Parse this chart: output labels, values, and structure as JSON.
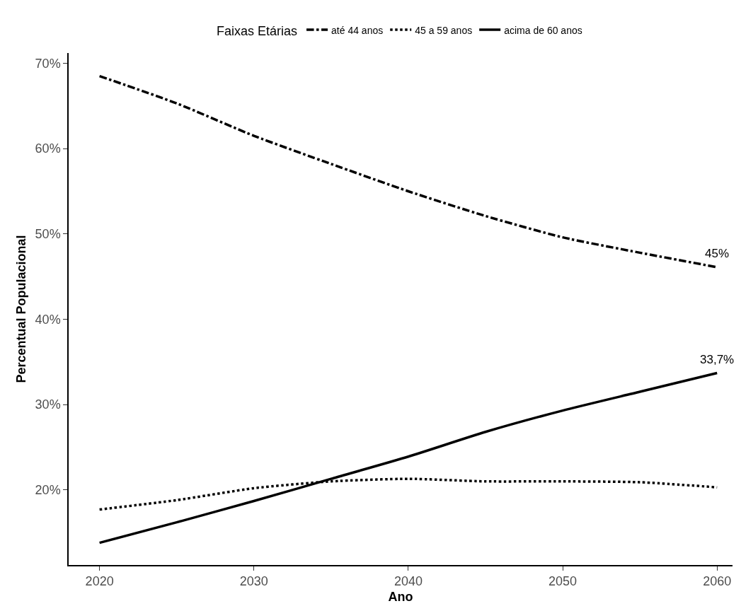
{
  "chart_data": {
    "type": "line",
    "xlabel": "Ano",
    "ylabel": "Percentual Populacional",
    "legend_title": "Faixas Etárias",
    "legend": "top",
    "x": [
      2020,
      2025,
      2030,
      2035,
      2040,
      2045,
      2050,
      2055,
      2060
    ],
    "series": [
      {
        "name": "até 44 anos",
        "color": "#000000",
        "line_style": "dashed",
        "values": [
          68.5,
          65.3,
          61.5,
          58.2,
          55.0,
          52.1,
          49.6,
          47.8,
          46.1
        ]
      },
      {
        "name": "45 a 59 anos",
        "color": "#000000",
        "line_style": "dotted",
        "values": [
          17.7,
          18.8,
          20.2,
          21.0,
          21.3,
          21.0,
          21.0,
          20.9,
          20.3
        ]
      },
      {
        "name": "acima de 60 anos",
        "color": "#000000",
        "line_style": "solid",
        "values": [
          13.8,
          16.2,
          18.7,
          21.3,
          23.9,
          26.8,
          29.3,
          31.5,
          33.7
        ]
      }
    ],
    "annotations": [
      {
        "text": "45%",
        "x": 2060,
        "y": 46.1
      },
      {
        "text": "33,7%",
        "x": 2060,
        "y": 33.7
      }
    ],
    "xlim": [
      2018,
      2061
    ],
    "xticks": [
      2020,
      2030,
      2040,
      2050,
      2060
    ],
    "ylim": [
      11.2,
      71.2
    ],
    "yticks": [
      {
        "value": 20,
        "label": "20%"
      },
      {
        "value": 30,
        "label": "30%"
      },
      {
        "value": 40,
        "label": "40%"
      },
      {
        "value": 50,
        "label": "50%"
      },
      {
        "value": 60,
        "label": "60%"
      },
      {
        "value": 70,
        "label": "70%"
      }
    ],
    "grid": false,
    "marker": "none"
  }
}
